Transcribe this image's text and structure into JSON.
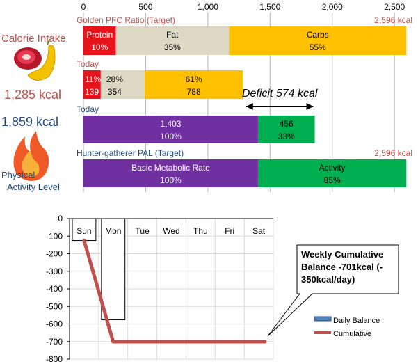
{
  "left_panel": {
    "intake_label": "Calorie Intake",
    "intake_value": "1,285 kcal",
    "expend_value": "1,859 kcal",
    "pal_label_line1": "Physical",
    "pal_label_line2": "Activity Level",
    "food_icon": "meat-banana-icon",
    "fire_icon": "flame-icon"
  },
  "colors": {
    "protein": "#e8141b",
    "fat": "#dcd8c4",
    "carbs": "#ffc000",
    "bmr": "#7030a0",
    "activity": "#00b050",
    "red_text": "#c0504d",
    "blue_text": "#1f497d",
    "cumulative": "#c0504d",
    "daily": "#4f81bd"
  },
  "chart_data": [
    {
      "type": "bar",
      "orientation": "horizontal-stacked",
      "x_ticks": [
        "0",
        "500",
        "1,000",
        "1,500",
        "2,000",
        "2,500"
      ],
      "xlim": [
        0,
        2650
      ],
      "grid": true,
      "rows": [
        {
          "label": "Golden PFC Ratio (Target)",
          "total_label": "2,596 kcal",
          "segments": [
            {
              "name": "Protein",
              "value": 260,
              "pct": "10%",
              "color_key": "protein"
            },
            {
              "name": "Fat",
              "value": 909,
              "pct": "35%",
              "color_key": "fat"
            },
            {
              "name": "Carbs",
              "value": 1427,
              "pct": "55%",
              "color_key": "carbs"
            }
          ]
        },
        {
          "label": "Today",
          "total_label": "",
          "segments": [
            {
              "name": "",
              "value": 139,
              "pct": "11%",
              "kcal": "139",
              "color_key": "protein"
            },
            {
              "name": "",
              "value": 354,
              "pct": "28%",
              "kcal": "354",
              "color_key": "fat"
            },
            {
              "name": "",
              "value": 788,
              "pct": "61%",
              "kcal": "788",
              "color_key": "carbs"
            }
          ]
        },
        {
          "label": "Today",
          "total_label": "",
          "segments": [
            {
              "name": "1,403",
              "value": 1403,
              "pct": "100%",
              "color_key": "bmr"
            },
            {
              "name": "456",
              "value": 456,
              "pct": "33%",
              "color_key": "activity"
            }
          ]
        },
        {
          "label": "Hunter-gatherer  PAL (Target)",
          "total_label": "2,596 kcal",
          "segments": [
            {
              "name": "Basic Metabolic Rate",
              "value": 1403,
              "pct": "100%",
              "color_key": "bmr"
            },
            {
              "name": "Activity",
              "value": 1193,
              "pct": "85%",
              "color_key": "activity"
            }
          ]
        }
      ],
      "annotation": {
        "text": "Deficit 574 kcal",
        "from": 1285,
        "to": 1859
      }
    },
    {
      "type": "bar+line",
      "categories": [
        "Sun",
        "Mon",
        "Tue",
        "Wed",
        "Thu",
        "Fri",
        "Sat"
      ],
      "y_ticks": [
        "0",
        "-100",
        "-200",
        "-300",
        "-400",
        "-500",
        "-600",
        "-700",
        "-800"
      ],
      "ylim": [
        -800,
        0
      ],
      "series": [
        {
          "name": "Daily Balance",
          "kind": "bar",
          "values": [
            -125,
            -576,
            null,
            null,
            null,
            null,
            null
          ]
        },
        {
          "name": "Cumulative",
          "kind": "line",
          "values": [
            -125,
            -701,
            -701,
            -701,
            -701,
            -701,
            -701
          ]
        }
      ],
      "callout": {
        "line1": "Weekly Cumulative",
        "line2": "Balance -701kcal (-",
        "line3": "350kcal/day)"
      },
      "legend_position": "bottom-right"
    }
  ]
}
